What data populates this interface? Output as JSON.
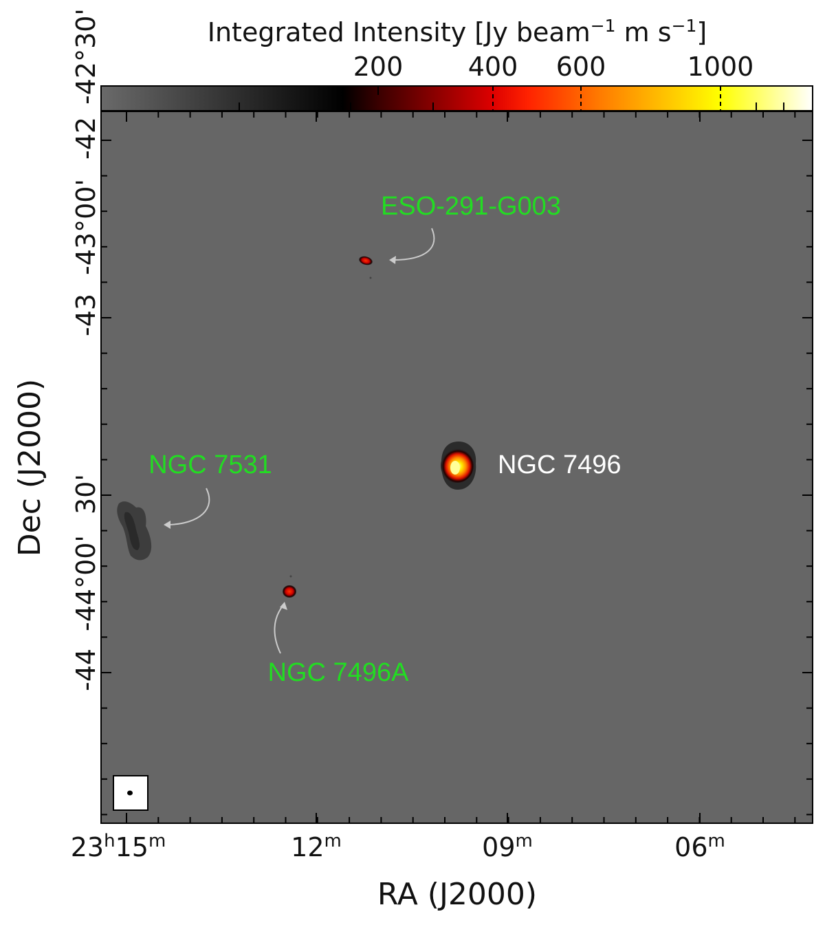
{
  "colorbar": {
    "title": "Integrated Intensity [Jy beam",
    "title_sup1": "−1",
    "title_mid": " m s",
    "title_sup2": "−1",
    "title_end": "]",
    "ticks": [
      "200",
      "400",
      "600",
      "1000"
    ]
  },
  "axes": {
    "xlabel": "RA (J2000)",
    "ylabel": "Dec (J2000)",
    "ra_ticks": [
      {
        "h": "23",
        "hs": "h",
        "m": "15",
        "ms": "m"
      },
      {
        "m": "12",
        "ms": "m"
      },
      {
        "m": "09",
        "ms": "m"
      },
      {
        "m": "06",
        "ms": "m"
      }
    ],
    "dec_ticks": [
      "-42°30'",
      "-43°00'",
      "30'",
      "-44°00'"
    ],
    "dec_ticks_secondary": [
      "-42",
      "-43",
      "-44"
    ]
  },
  "labels": {
    "eso": "ESO-291-G003",
    "ngc7496": "NGC 7496",
    "ngc7531": "NGC 7531",
    "ngc7496a": "NGC 7496A"
  },
  "colors": {
    "background": "#666666",
    "label_green": "#22dd22",
    "label_white": "#ffffff"
  }
}
